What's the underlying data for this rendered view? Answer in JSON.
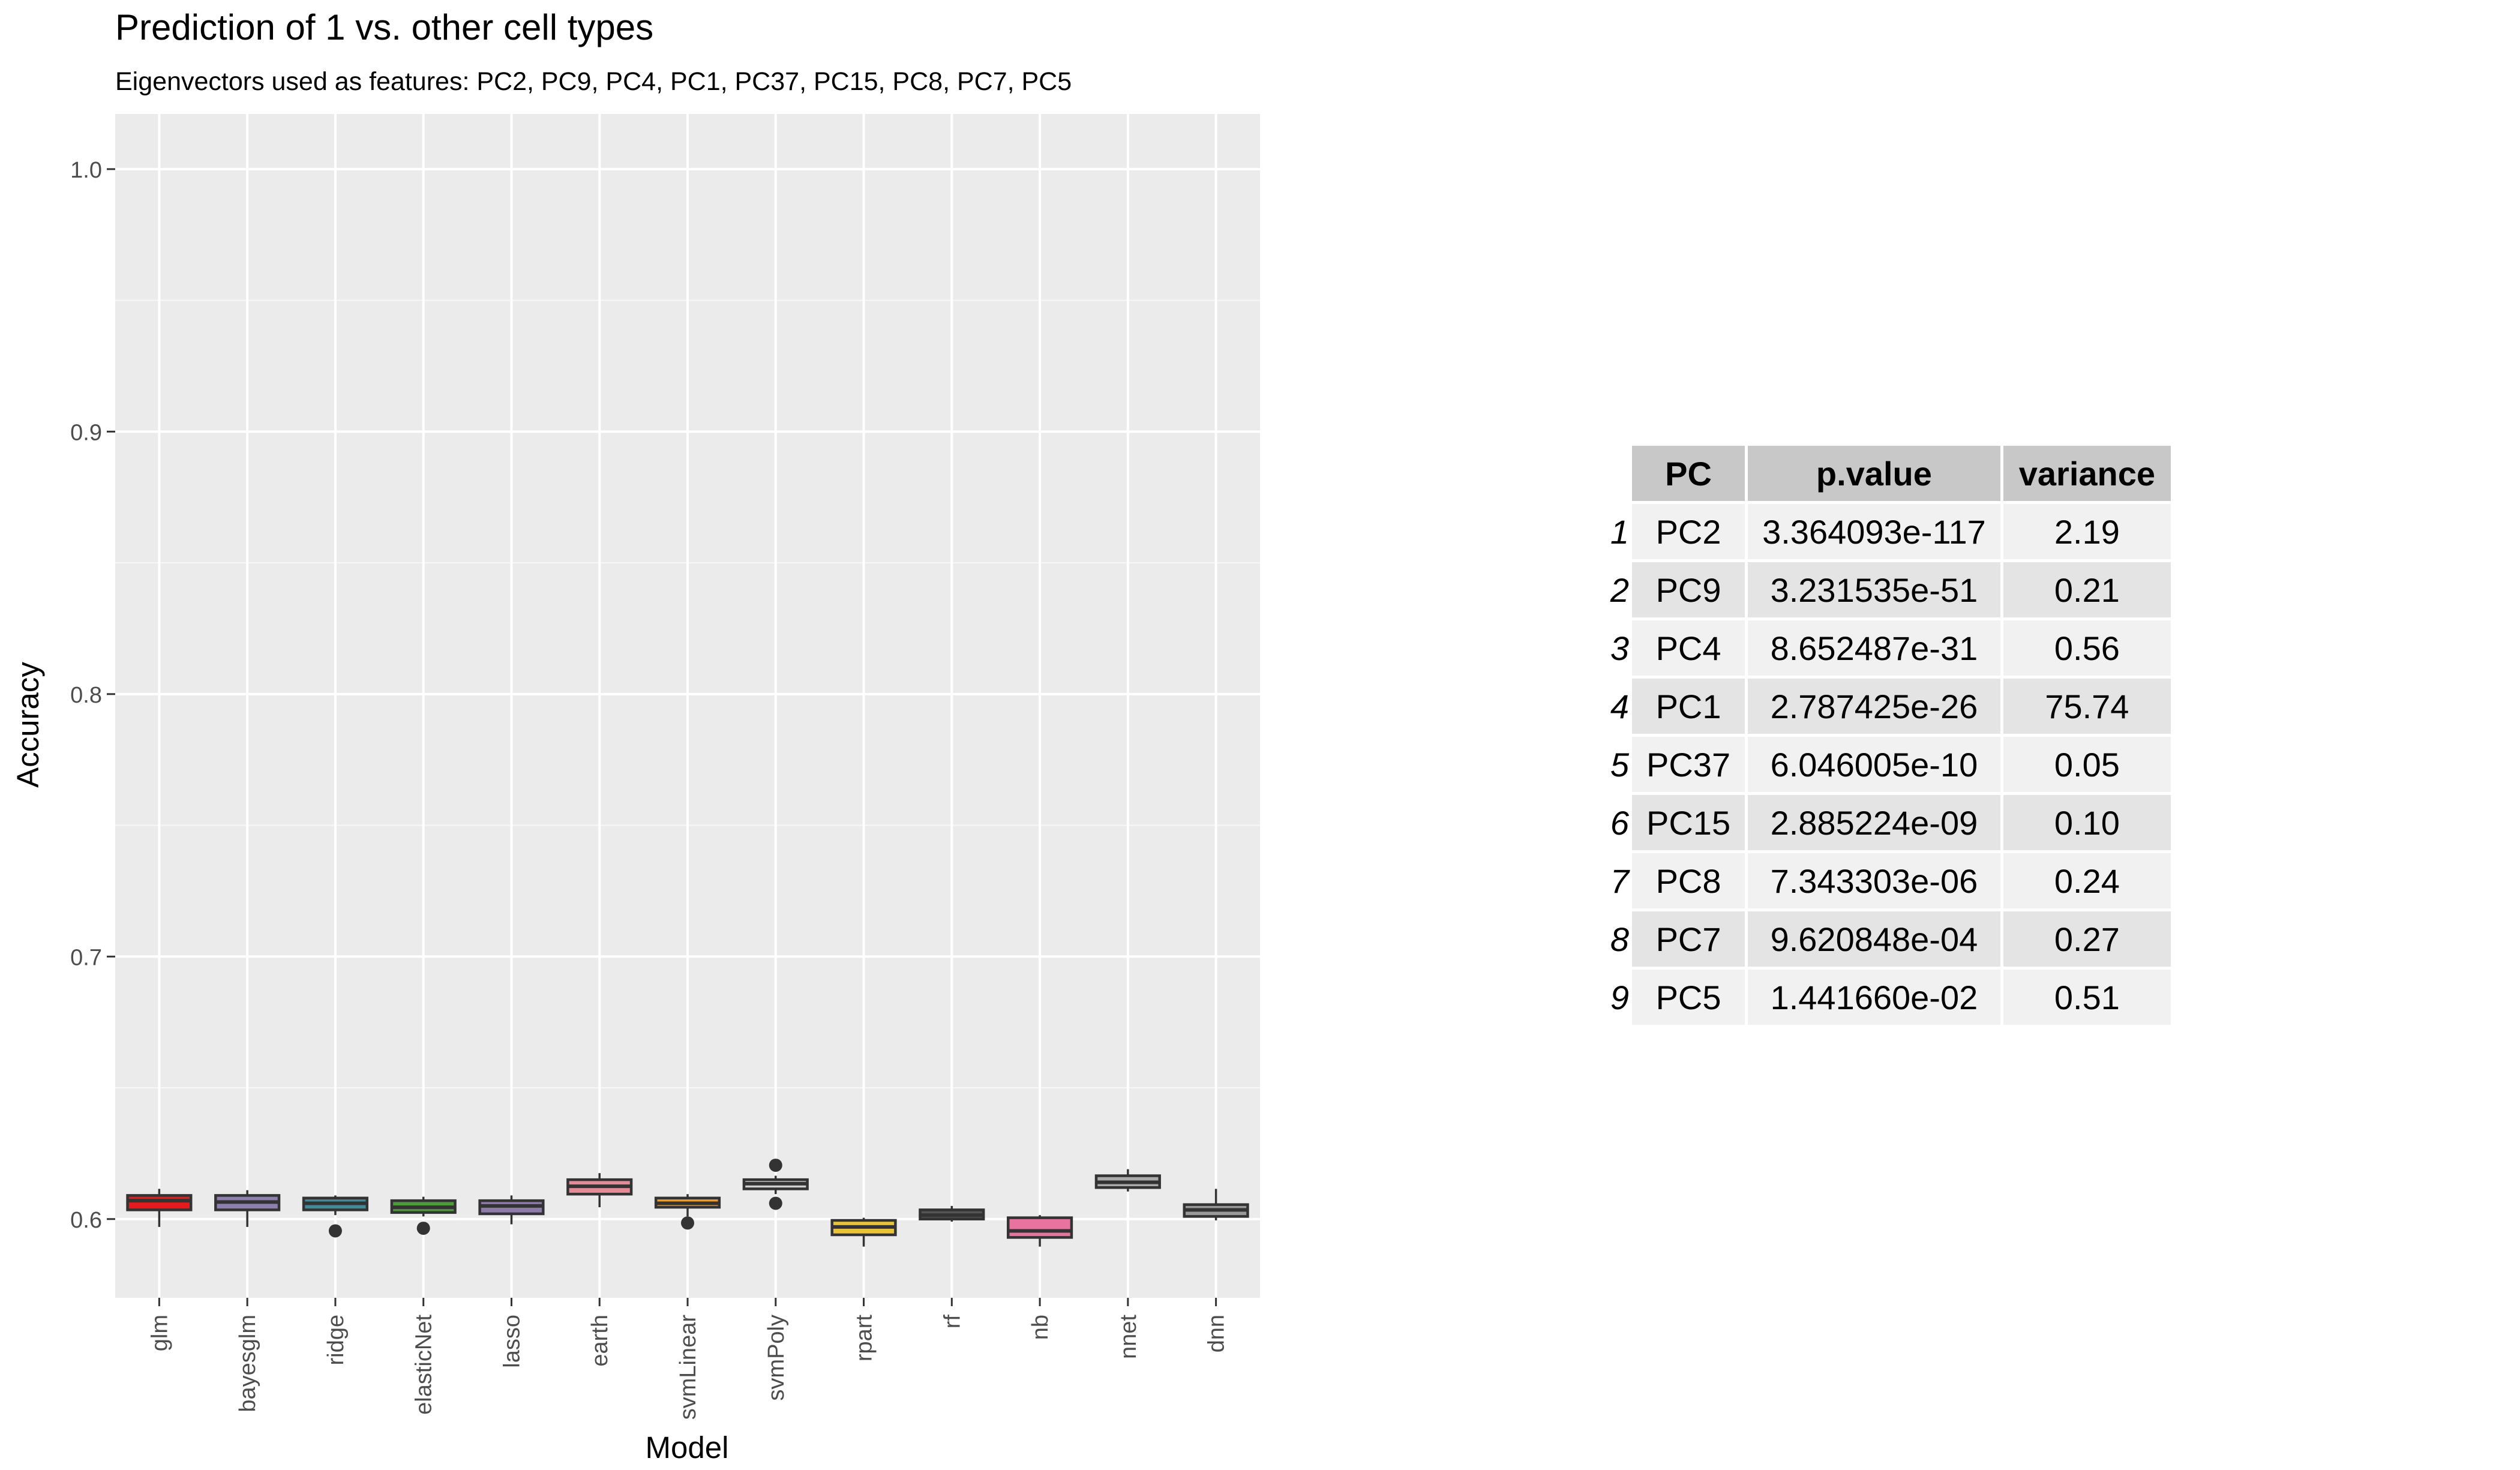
{
  "chart_data": {
    "type": "box",
    "title": "Prediction of 1 vs. other cell types",
    "subtitle": "Eigenvectors used as features: PC2, PC9, PC4, PC1, PC37, PC15, PC8, PC7, PC5",
    "xlabel": "Model",
    "ylabel": "Accuracy",
    "ylim": [
      0.57,
      1.021
    ],
    "yticks": [
      0.6,
      0.7,
      0.8,
      0.9,
      1.0
    ],
    "ytick_labels": [
      "0.6",
      "0.7",
      "0.8",
      "0.9",
      "1.0"
    ],
    "grid": true,
    "legend": "none",
    "categories": [
      "glm",
      "bayesglm",
      "ridge",
      "elasticNet",
      "lasso",
      "earth",
      "svmLinear",
      "svmPoly",
      "rpart",
      "rf",
      "nb",
      "nnet",
      "dnn"
    ],
    "colors": [
      "#e41a1c",
      "#8f7fb0",
      "#3e8c9a",
      "#4f9a3a",
      "#8d7ba8",
      "#e58a97",
      "#f59a1d",
      "#cfcfcf",
      "#e8c43a",
      "#555555",
      "#e7739e",
      "#aaaaaa",
      "#999999"
    ],
    "boxes": [
      {
        "whisker_low": 0.597,
        "q1": 0.6035,
        "median": 0.607,
        "q3": 0.609,
        "whisker_high": 0.6115,
        "outliers": []
      },
      {
        "whisker_low": 0.597,
        "q1": 0.6035,
        "median": 0.6065,
        "q3": 0.609,
        "whisker_high": 0.611,
        "outliers": []
      },
      {
        "whisker_low": 0.6015,
        "q1": 0.6035,
        "median": 0.606,
        "q3": 0.608,
        "whisker_high": 0.609,
        "outliers": [
          0.5955
        ]
      },
      {
        "whisker_low": 0.601,
        "q1": 0.6025,
        "median": 0.6045,
        "q3": 0.607,
        "whisker_high": 0.6085,
        "outliers": [
          0.5965
        ]
      },
      {
        "whisker_low": 0.598,
        "q1": 0.602,
        "median": 0.605,
        "q3": 0.607,
        "whisker_high": 0.609,
        "outliers": []
      },
      {
        "whisker_low": 0.6045,
        "q1": 0.6095,
        "median": 0.6125,
        "q3": 0.615,
        "whisker_high": 0.6175,
        "outliers": []
      },
      {
        "whisker_low": 0.601,
        "q1": 0.6045,
        "median": 0.606,
        "q3": 0.608,
        "whisker_high": 0.6095,
        "outliers": [
          0.5985
        ]
      },
      {
        "whisker_low": 0.6095,
        "q1": 0.6115,
        "median": 0.6135,
        "q3": 0.615,
        "whisker_high": 0.6165,
        "outliers": [
          0.6205,
          0.606
        ]
      },
      {
        "whisker_low": 0.5895,
        "q1": 0.594,
        "median": 0.597,
        "q3": 0.5995,
        "whisker_high": 0.6005,
        "outliers": []
      },
      {
        "whisker_low": 0.599,
        "q1": 0.6,
        "median": 0.6015,
        "q3": 0.6035,
        "whisker_high": 0.605,
        "outliers": []
      },
      {
        "whisker_low": 0.5895,
        "q1": 0.593,
        "median": 0.5955,
        "q3": 0.6005,
        "whisker_high": 0.6015,
        "outliers": []
      },
      {
        "whisker_low": 0.6105,
        "q1": 0.612,
        "median": 0.614,
        "q3": 0.6165,
        "whisker_high": 0.619,
        "outliers": []
      },
      {
        "whisker_low": 0.5995,
        "q1": 0.601,
        "median": 0.6035,
        "q3": 0.6055,
        "whisker_high": 0.6115,
        "outliers": []
      }
    ]
  },
  "table": {
    "headers": [
      "PC",
      "p.value",
      "variance"
    ],
    "rows": [
      {
        "rowname": "1",
        "pc": "PC2",
        "p_value": "3.364093e-117",
        "variance": "2.19"
      },
      {
        "rowname": "2",
        "pc": "PC9",
        "p_value": "3.231535e-51",
        "variance": "0.21"
      },
      {
        "rowname": "3",
        "pc": "PC4",
        "p_value": "8.652487e-31",
        "variance": "0.56"
      },
      {
        "rowname": "4",
        "pc": "PC1",
        "p_value": "2.787425e-26",
        "variance": "75.74"
      },
      {
        "rowname": "5",
        "pc": "PC37",
        "p_value": "6.046005e-10",
        "variance": "0.05"
      },
      {
        "rowname": "6",
        "pc": "PC15",
        "p_value": "2.885224e-09",
        "variance": "0.10"
      },
      {
        "rowname": "7",
        "pc": "PC8",
        "p_value": "7.343303e-06",
        "variance": "0.24"
      },
      {
        "rowname": "8",
        "pc": "PC7",
        "p_value": "9.620848e-04",
        "variance": "0.27"
      },
      {
        "rowname": "9",
        "pc": "PC5",
        "p_value": "1.441660e-02",
        "variance": "0.51"
      }
    ]
  }
}
